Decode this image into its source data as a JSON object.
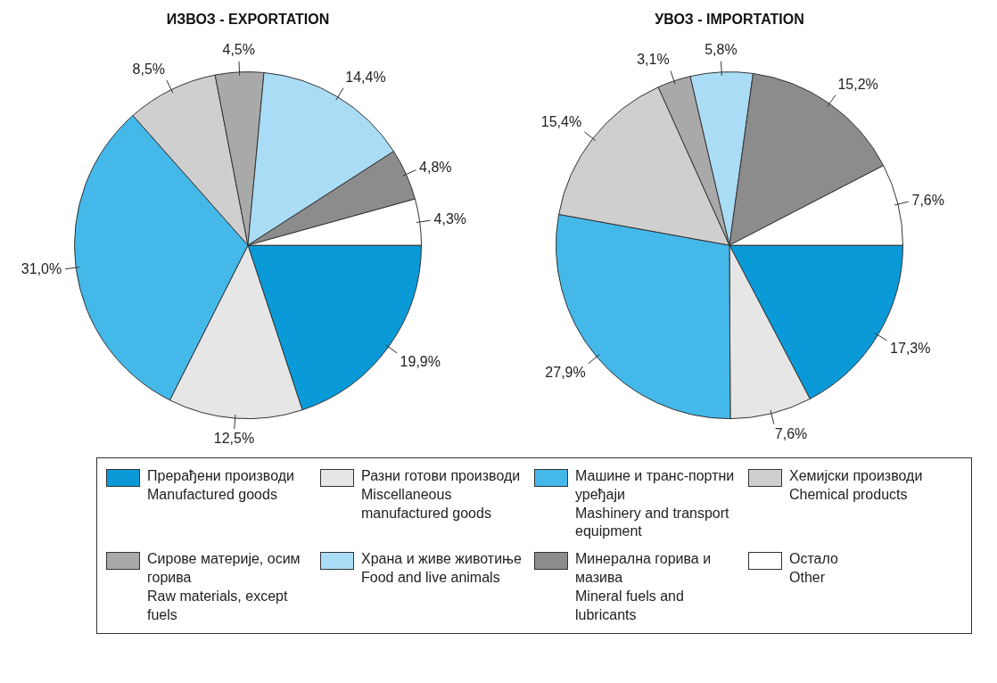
{
  "chart_data": [
    {
      "type": "pie",
      "title": "ИЗВОЗ - EXPORTATION",
      "categories": [
        "Прерађени производи\nManufactured goods",
        "Разни готови производи\nMiscellaneous manufactured goods",
        "Машине и транс-портни уређаји\nMashinery and transport equipment",
        "Хемијски производи\nChemical products",
        "Сирове материје, осим горива\nRaw materials, except fuels",
        "Храна и живе животиње\nFood and live animals",
        "Минерална горива и мазива\nMineral fuels and lubricants",
        "Остало\nOther"
      ],
      "values": [
        19.9,
        12.5,
        31.0,
        8.5,
        4.5,
        14.4,
        4.8,
        4.3
      ],
      "value_labels": [
        "19,9%",
        "12,5%",
        "31,0%",
        "8,5%",
        "4,5%",
        "14,4%",
        "4,8%",
        "4,3%"
      ],
      "colors": [
        "#0a9ad8",
        "#e6e6e6",
        "#45b8ea",
        "#cfcfcf",
        "#a9a9a9",
        "#aadcf6",
        "#8c8c8c",
        "#ffffff"
      ],
      "legend": "bottom"
    },
    {
      "type": "pie",
      "title": "УВОЗ - IMPORTATION",
      "categories": [
        null,
        null,
        null,
        null,
        null,
        null,
        null,
        null
      ],
      "values": [
        17.3,
        7.6,
        27.9,
        15.4,
        3.1,
        5.8,
        15.2,
        7.6
      ],
      "value_labels": [
        "17,3%",
        "7,6%",
        "27,9%",
        "15,4%",
        "3,1%",
        "5,8%",
        "15,2%",
        "7,6%"
      ],
      "colors": [
        "#0a9ad8",
        "#e6e6e6",
        "#45b8ea",
        "#cfcfcf",
        "#a9a9a9",
        "#aadcf6",
        "#8c8c8c",
        "#ffffff"
      ]
    }
  ]
}
